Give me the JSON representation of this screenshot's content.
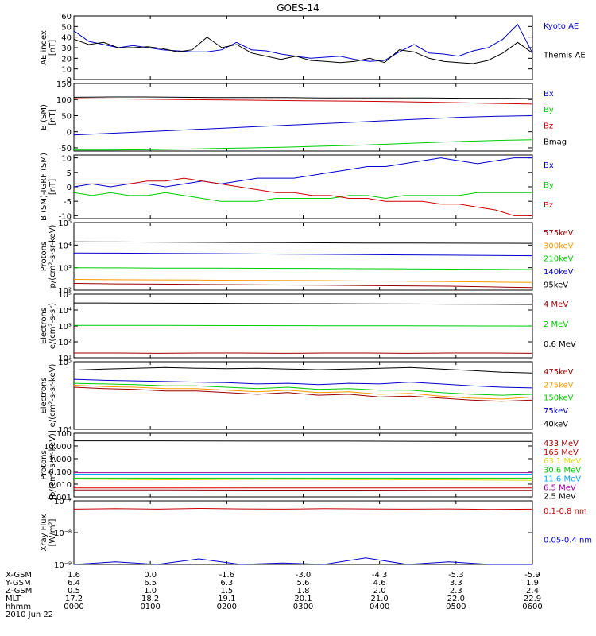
{
  "title": "GOES-14",
  "colors": {
    "black": "#000000",
    "blue": "#0000cc",
    "green": "#00cc00",
    "red": "#cc0000",
    "orange": "#ff9900",
    "yellow": "#dddd00",
    "cyan": "#00aaee",
    "purple": "#990099",
    "darkred": "#990000"
  },
  "chart_data": [
    {
      "type": "line",
      "id": "ae",
      "ylabel": [
        "AE index",
        "[nT]"
      ],
      "yscale": "linear",
      "ylim": [
        0,
        60
      ],
      "yticks": [
        "0",
        "10",
        "20",
        "30",
        "40",
        "50",
        "60"
      ],
      "series": [
        {
          "name": "Kyoto AE",
          "color": "#0000cc",
          "y": [
            46,
            36,
            33,
            30,
            32,
            30,
            28,
            27,
            26,
            26,
            28,
            35,
            28,
            27,
            24,
            22,
            20,
            21,
            22,
            19,
            17,
            18,
            26,
            33,
            25,
            24,
            22,
            27,
            30,
            38,
            52,
            25
          ]
        },
        {
          "name": "Themis AE",
          "color": "#000000",
          "y": [
            38,
            33,
            35,
            30,
            30,
            31,
            29,
            26,
            28,
            40,
            30,
            33,
            25,
            22,
            19,
            22,
            18,
            17,
            16,
            17,
            20,
            16,
            28,
            26,
            20,
            17,
            16,
            15,
            18,
            25,
            35,
            25
          ]
        }
      ]
    },
    {
      "type": "line",
      "id": "bsm",
      "ylabel": [
        "B (SM)",
        "[nT]"
      ],
      "yscale": "linear",
      "ylim": [
        -60,
        150
      ],
      "yticks": [
        "-50",
        "0",
        "50",
        "100",
        "150"
      ],
      "series": [
        {
          "name": "Bx",
          "color": "#0000cc",
          "y": [
            -10,
            -5,
            0,
            5,
            10,
            15,
            20,
            25,
            30,
            35,
            40,
            45,
            48,
            50
          ]
        },
        {
          "name": "By",
          "color": "#00cc00",
          "y": [
            -57,
            -57,
            -56,
            -54,
            -52,
            -50,
            -48,
            -45,
            -42,
            -38,
            -34,
            -30,
            -27,
            -25
          ]
        },
        {
          "name": "Bz",
          "color": "#cc0000",
          "y": [
            103,
            102,
            101,
            100,
            99,
            98,
            97,
            96,
            95,
            94,
            92,
            90,
            88,
            86
          ]
        },
        {
          "name": "Bmag",
          "color": "#000000",
          "y": [
            107,
            108,
            108,
            107,
            106,
            106,
            106,
            105,
            105,
            105,
            105,
            104,
            104,
            103
          ]
        }
      ]
    },
    {
      "type": "line",
      "id": "bigrf",
      "ylabel": [
        "B (SM)-IGRF (SM)",
        "[nT]"
      ],
      "yscale": "linear",
      "ylim": [
        -11,
        11
      ],
      "yticks": [
        "-10",
        "-5",
        "0",
        "5",
        "10"
      ],
      "series": [
        {
          "name": "Bx",
          "color": "#0000cc",
          "y": [
            0,
            1,
            0,
            1,
            1,
            0,
            1,
            2,
            1,
            2,
            3,
            3,
            3,
            4,
            5,
            6,
            7,
            7,
            8,
            9,
            10,
            9,
            8,
            9,
            10,
            10
          ]
        },
        {
          "name": "By",
          "color": "#00cc00",
          "y": [
            -2,
            -3,
            -2,
            -3,
            -3,
            -2,
            -3,
            -4,
            -5,
            -5,
            -5,
            -4,
            -4,
            -4,
            -4,
            -3,
            -3,
            -4,
            -3,
            -3,
            -3,
            -3,
            -2,
            -2,
            -2,
            -2
          ]
        },
        {
          "name": "Bz",
          "color": "#cc0000",
          "y": [
            1,
            1,
            1,
            1,
            2,
            2,
            3,
            2,
            1,
            0,
            -1,
            -2,
            -2,
            -3,
            -3,
            -4,
            -4,
            -5,
            -5,
            -5,
            -6,
            -6,
            -7,
            -8,
            -10,
            -10
          ]
        }
      ]
    },
    {
      "type": "line",
      "id": "protons1",
      "ylabel": [
        "Protons",
        "p/(cm²-s-sr-keV)"
      ],
      "yscale": "log",
      "ylim": [
        100,
        100000
      ],
      "yticks": [
        "10²",
        "10³",
        "10⁴",
        "10⁵"
      ],
      "series": [
        {
          "name": "575keV",
          "color": "#990000",
          "y": [
            200,
            190,
            185,
            180,
            175,
            170,
            165,
            160,
            155,
            150,
            140,
            130
          ]
        },
        {
          "name": "300keV",
          "color": "#ff9900",
          "y": [
            300,
            290,
            285,
            280,
            275,
            270,
            265,
            255,
            250,
            240,
            230,
            220
          ]
        },
        {
          "name": "210keV",
          "color": "#00cc00",
          "y": [
            1000,
            980,
            960,
            950,
            940,
            930,
            920,
            900,
            880,
            860,
            840,
            820
          ]
        },
        {
          "name": "140keV",
          "color": "#0000cc",
          "y": [
            4500,
            4400,
            4300,
            4200,
            4100,
            4000,
            3900,
            3800,
            3700,
            3600,
            3500,
            3400
          ]
        },
        {
          "name": "95keV",
          "color": "#000000",
          "y": [
            14000,
            13800,
            13500,
            13200,
            13000,
            12800,
            12600,
            12400,
            12300,
            12200,
            12100,
            12000
          ]
        }
      ]
    },
    {
      "type": "line",
      "id": "electrons1",
      "ylabel": [
        "Electrons",
        "e/(cm²-s-sr)"
      ],
      "yscale": "log",
      "ylim": [
        10,
        100000
      ],
      "yticks": [
        "10¹",
        "10²",
        "10³",
        "10⁴",
        "10⁵"
      ],
      "series": [
        {
          "name": "4 MeV",
          "color": "#990000",
          "y": [
            20,
            20,
            19,
            20,
            20,
            19,
            20,
            20,
            19,
            20,
            20,
            19
          ]
        },
        {
          "name": "2 MeV",
          "color": "#00cc00",
          "y": [
            1100,
            1100,
            1080,
            1070,
            1060,
            1050,
            1040,
            1030,
            1020,
            1010,
            1000,
            990
          ]
        },
        {
          "name": "0.6 MeV",
          "color": "#000000",
          "y": [
            28000,
            27500,
            27000,
            26500,
            26000,
            25500,
            25000,
            24500,
            24000,
            23500,
            23000,
            22500
          ]
        }
      ]
    },
    {
      "type": "line",
      "id": "electrons2",
      "ylabel": [
        "Electrons",
        "e/(cm²-s-sr-keV)"
      ],
      "yscale": "log",
      "ylim": [
        10000,
        100000
      ],
      "yticks": [
        "10⁴",
        "10⁵"
      ],
      "series": [
        {
          "name": "475keV",
          "color": "#990000",
          "y": [
            42000,
            40000,
            39000,
            37000,
            37000,
            35000,
            33000,
            35000,
            32000,
            33000,
            30000,
            31000,
            29000,
            27000,
            26000,
            27000
          ]
        },
        {
          "name": "275keV",
          "color": "#ff9900",
          "y": [
            45000,
            43000,
            42000,
            40000,
            40000,
            38000,
            36000,
            38000,
            35000,
            36000,
            33000,
            34000,
            31000,
            29000,
            28000,
            30000
          ]
        },
        {
          "name": "150keV",
          "color": "#00cc00",
          "y": [
            48000,
            47000,
            46000,
            44000,
            44000,
            42000,
            40000,
            42000,
            39000,
            40000,
            38000,
            38000,
            35000,
            33000,
            32000,
            33000
          ]
        },
        {
          "name": "75keV",
          "color": "#0000cc",
          "y": [
            55000,
            53000,
            52000,
            51000,
            50000,
            49000,
            47000,
            48000,
            46000,
            48000,
            47000,
            50000,
            47000,
            44000,
            42000,
            41000
          ]
        },
        {
          "name": "40keV",
          "color": "#000000",
          "y": [
            75000,
            78000,
            80000,
            82000,
            80000,
            79000,
            80000,
            78000,
            76000,
            78000,
            80000,
            82000,
            78000,
            74000,
            70000,
            68000
          ]
        }
      ]
    },
    {
      "type": "line",
      "id": "protons2",
      "ylabel": [
        "Protons",
        "[p/(cm²-s-sr-keV)]"
      ],
      "yscale": "log",
      "ylim": [
        0.001,
        100
      ],
      "yticks": [
        "0.001",
        "0.010",
        "0.100",
        "1.000",
        "10.000",
        "100"
      ],
      "series": [
        {
          "name": "433 MeV",
          "color": "#990000",
          "y": [
            0.0035,
            0.0035,
            0.0034,
            0.0034,
            0.0033,
            0.0033
          ]
        },
        {
          "name": "165 MeV",
          "color": "#cc0000",
          "y": [
            0.005,
            0.005,
            0.005,
            0.005,
            0.005,
            0.005
          ]
        },
        {
          "name": "63.1 MeV",
          "color": "#dddd00",
          "y": [
            0.025,
            0.022,
            0.024,
            0.023,
            0.022,
            0.02
          ]
        },
        {
          "name": "30.6 MeV",
          "color": "#00cc00",
          "y": [
            0.03,
            0.03,
            0.03,
            0.03,
            0.03,
            0.03
          ]
        },
        {
          "name": "11.6 MeV",
          "color": "#00aaee",
          "y": [
            0.06,
            0.06,
            0.06,
            0.06,
            0.06,
            0.06
          ]
        },
        {
          "name": "6.5 MeV",
          "color": "#990099",
          "y": [
            0.08,
            0.08,
            0.08,
            0.08,
            0.08,
            0.08
          ]
        },
        {
          "name": "2.5 MeV",
          "color": "#000000",
          "y": [
            25,
            25,
            24,
            24,
            23,
            23
          ]
        }
      ]
    },
    {
      "type": "line",
      "id": "xray",
      "ylabel": [
        "Xray Flux",
        "[W/m²]"
      ],
      "yscale": "log",
      "ylim": [
        1e-09,
        1e-07
      ],
      "yticks": [
        "10⁻⁹",
        "10⁻⁸",
        "10⁻⁷"
      ],
      "series": [
        {
          "name": "0.1-0.8 nm",
          "color": "#cc0000",
          "y": [
            5.5e-08,
            5.7e-08,
            5.5e-08,
            5.8e-08,
            5.6e-08,
            5.5e-08,
            5.7e-08,
            5.6e-08,
            5.5e-08,
            5.6e-08,
            5.4e-08,
            5.5e-08
          ]
        },
        {
          "name": "0.05-0.4 nm",
          "color": "#0000cc",
          "y": [
            1e-09,
            1.2e-09,
            1e-09,
            1.5e-09,
            1e-09,
            1.1e-09,
            1e-09,
            1.6e-09,
            1e-09,
            1.2e-09,
            1e-09,
            1e-09
          ]
        }
      ]
    }
  ],
  "footer": {
    "rows": [
      {
        "label": "X-GSM",
        "values": [
          "1.6",
          "0.0",
          "-1.6",
          "-3.0",
          "-4.3",
          "-5.3",
          "-5.9"
        ]
      },
      {
        "label": "Y-GSM",
        "values": [
          "6.4",
          "6.5",
          "6.3",
          "5.6",
          "4.6",
          "3.3",
          "1.9"
        ]
      },
      {
        "label": "Z-GSM",
        "values": [
          "0.5",
          "1.0",
          "1.5",
          "1.8",
          "2.0",
          "2.3",
          "2.4"
        ]
      },
      {
        "label": "MLT",
        "values": [
          "17.2",
          "18.2",
          "19.1",
          "20.1",
          "21.0",
          "22.0",
          "22.9"
        ]
      },
      {
        "label": "hhmm",
        "values": [
          "0000",
          "0100",
          "0200",
          "0300",
          "0400",
          "0500",
          "0600"
        ]
      }
    ],
    "date": "2010 Jun 22"
  }
}
